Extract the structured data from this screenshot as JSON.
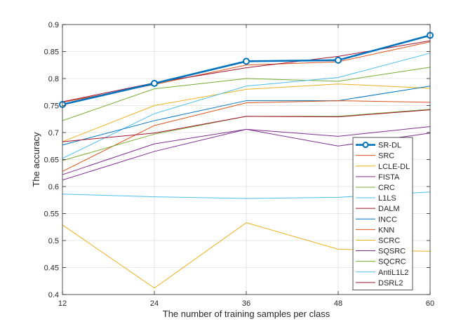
{
  "chart_data": {
    "type": "line",
    "xlabel": "The number of training samples per class",
    "ylabel": "The accuracy",
    "x": [
      12,
      24,
      36,
      48,
      60
    ],
    "xlim": [
      12,
      60
    ],
    "ylim": [
      0.4,
      0.9
    ],
    "x_ticks": [
      "12",
      "24",
      "36",
      "48",
      "60"
    ],
    "y_ticks": [
      "0.4",
      "0.45",
      "0.5",
      "0.55",
      "0.6",
      "0.65",
      "0.7",
      "0.75",
      "0.8",
      "0.85",
      "0.9"
    ],
    "grid": true,
    "legend_position": "lower-right",
    "series": [
      {
        "name": "SR-DL",
        "color": "#0072bd",
        "highlight": true,
        "marker": "circle",
        "values": [
          0.752,
          0.791,
          0.832,
          0.834,
          0.88
        ]
      },
      {
        "name": "SRC",
        "color": "#d95319",
        "values": [
          0.756,
          0.789,
          0.825,
          0.831,
          0.868
        ]
      },
      {
        "name": "LCLE-DL",
        "color": "#edb120",
        "values": [
          0.683,
          0.75,
          0.78,
          0.79,
          0.782
        ]
      },
      {
        "name": "FISTA",
        "color": "#7e2f8e",
        "values": [
          0.622,
          0.679,
          0.706,
          0.693,
          0.711
        ]
      },
      {
        "name": "CRC",
        "color": "#77ac30",
        "values": [
          0.722,
          0.781,
          0.8,
          0.795,
          0.821
        ]
      },
      {
        "name": "L1LS",
        "color": "#4dbeee",
        "values": [
          0.652,
          0.735,
          0.786,
          0.802,
          0.847
        ]
      },
      {
        "name": "DALM",
        "color": "#a2142f",
        "values": [
          0.757,
          0.792,
          0.82,
          0.841,
          0.87
        ]
      },
      {
        "name": "INCC",
        "color": "#0072bd",
        "values": [
          0.677,
          0.722,
          0.759,
          0.759,
          0.786
        ]
      },
      {
        "name": "KNN",
        "color": "#d95319",
        "values": [
          0.628,
          0.713,
          0.755,
          0.759,
          0.756
        ]
      },
      {
        "name": "SCRC",
        "color": "#edb120",
        "values": [
          0.529,
          0.412,
          0.533,
          0.484,
          0.48
        ]
      },
      {
        "name": "SQSRC",
        "color": "#7e2f8e",
        "values": [
          0.612,
          0.665,
          0.706,
          0.675,
          0.699
        ]
      },
      {
        "name": "SQCRC",
        "color": "#77ac30",
        "values": [
          0.648,
          0.697,
          0.73,
          0.73,
          0.743
        ]
      },
      {
        "name": "AntiL1L2",
        "color": "#4dbeee",
        "values": [
          0.586,
          0.581,
          0.578,
          0.58,
          0.59
        ]
      },
      {
        "name": "DSRL2",
        "color": "#a2142f",
        "values": [
          0.683,
          0.699,
          0.73,
          0.729,
          0.742
        ]
      }
    ]
  }
}
